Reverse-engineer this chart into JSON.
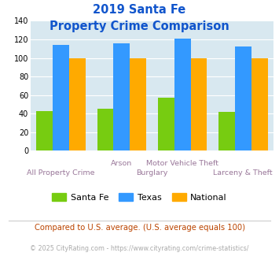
{
  "title_line1": "2019 Santa Fe",
  "title_line2": "Property Crime Comparison",
  "series": {
    "Santa Fe": [
      43,
      45,
      57,
      42
    ],
    "Texas": [
      114,
      116,
      121,
      112
    ],
    "National": [
      100,
      100,
      100,
      100
    ]
  },
  "colors": {
    "Santa Fe": "#77cc11",
    "Texas": "#3399ff",
    "National": "#ffaa00"
  },
  "ylim": [
    0,
    140
  ],
  "yticks": [
    0,
    20,
    40,
    60,
    80,
    100,
    120,
    140
  ],
  "background_color": "#d8e8f0",
  "title_color": "#1155cc",
  "xlabel_color": "#997799",
  "footnote1": "Compared to U.S. average. (U.S. average equals 100)",
  "footnote2": "© 2025 CityRating.com - https://www.cityrating.com/crime-statistics/",
  "footnote1_color": "#bb4400",
  "footnote2_color": "#aaaaaa",
  "grid_color": "#ffffff"
}
